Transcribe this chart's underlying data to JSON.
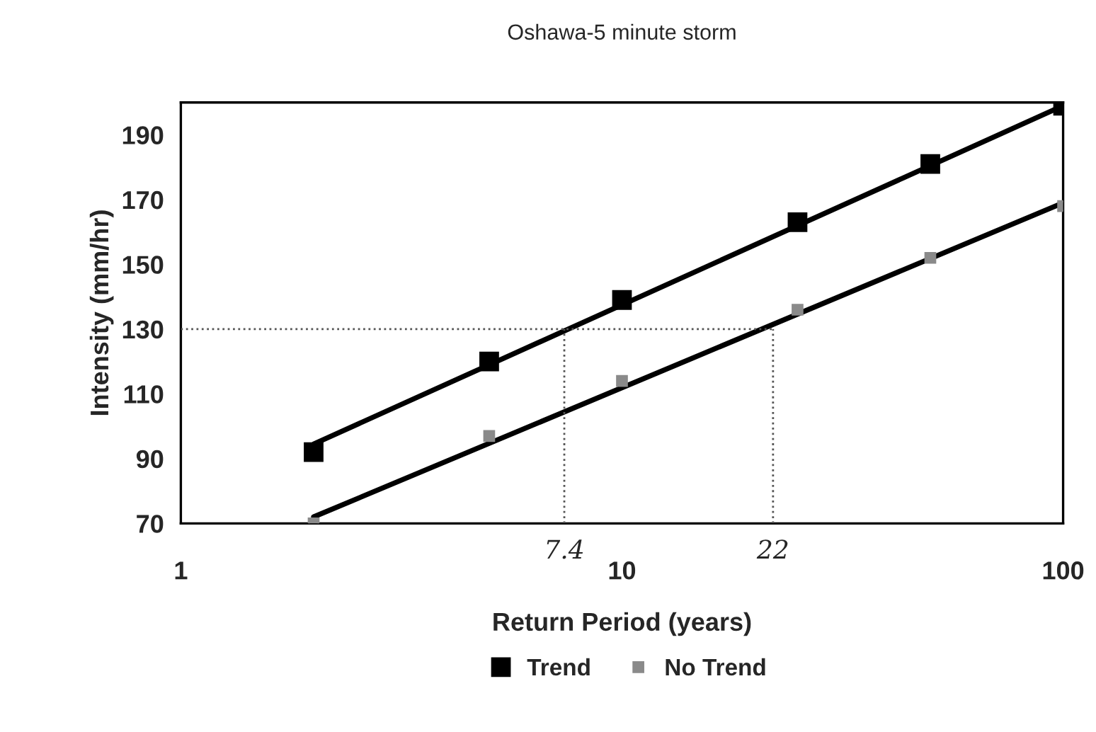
{
  "chart_data": {
    "type": "line",
    "title": "Oshawa-5 minute storm",
    "xlabel": "Return Period (years)",
    "ylabel": "Intensity (mm/hr)",
    "log": "x",
    "xlim": [
      1,
      100
    ],
    "xticks": [
      1,
      10,
      100
    ],
    "ylim": [
      70,
      200
    ],
    "yticks": [
      70,
      90,
      110,
      130,
      150,
      170,
      190
    ],
    "grid": false,
    "legend": "bottom",
    "series": [
      {
        "name": "Trend",
        "type": "scatter",
        "marker": "square",
        "color": "#000000",
        "x": [
          2,
          5,
          10,
          25,
          50,
          100
        ],
        "values": [
          92,
          120,
          139,
          163,
          181,
          199
        ]
      },
      {
        "name": "No Trend",
        "type": "scatter",
        "marker": "square",
        "color": "#8a8a8a",
        "x": [
          2,
          5,
          10,
          25,
          50,
          100
        ],
        "values": [
          70,
          97,
          114,
          136,
          152,
          168
        ]
      },
      {
        "color": "#000000",
        "x": [
          2,
          100
        ],
        "values": [
          94.5,
          199
        ],
        "line_style": "solid"
      },
      {
        "color": "#000000",
        "x": [
          2,
          100
        ],
        "values": [
          72,
          169
        ],
        "line_style": "solid"
      },
      {
        "color": "#555555",
        "x": [
          1,
          22
        ],
        "values": [
          130,
          130
        ],
        "line_style": "dotted"
      },
      {
        "color": "#555555",
        "x": [
          7.4,
          7.4
        ],
        "values": [
          70,
          130
        ],
        "line_style": "dotted"
      },
      {
        "color": "#555555",
        "x": [
          22,
          22
        ],
        "values": [
          70,
          130
        ],
        "line_style": "dotted"
      }
    ],
    "annotations": [
      {
        "text": "7.4",
        "x": 7.4,
        "y": 70
      },
      {
        "text": "22",
        "x": 22,
        "y": 70
      }
    ]
  }
}
